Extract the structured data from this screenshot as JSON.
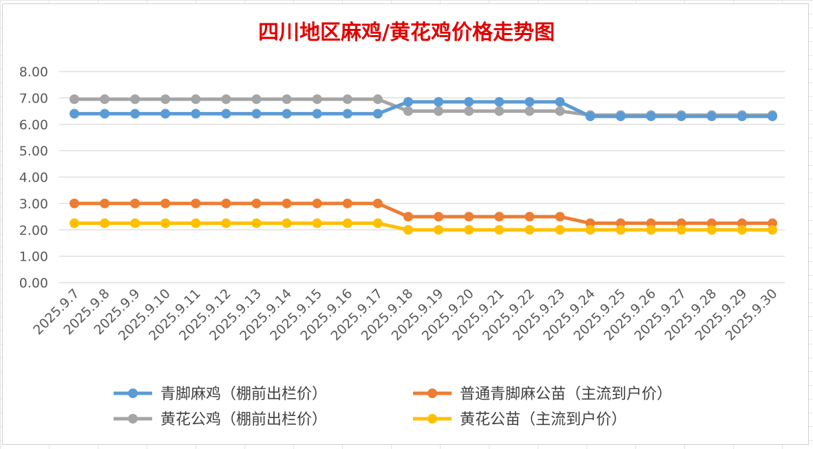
{
  "chart_data": {
    "type": "line",
    "title": "四川地区麻鸡/黄花鸡价格走势图",
    "xlabel": "",
    "ylabel": "",
    "ylim": [
      0,
      8
    ],
    "y_ticks": [
      "0.00",
      "1.00",
      "2.00",
      "3.00",
      "4.00",
      "5.00",
      "6.00",
      "7.00",
      "8.00"
    ],
    "grid": "horizontal",
    "legend_position": "bottom",
    "categories": [
      "2025.9.7",
      "2025.9.8",
      "2025.9.9",
      "2025.9.10",
      "2025.9.11",
      "2025.9.12",
      "2025.9.13",
      "2025.9.14",
      "2025.9.15",
      "2025.9.16",
      "2025.9.17",
      "2025.9.18",
      "2025.9.19",
      "2025.9.20",
      "2025.9.21",
      "2025.9.22",
      "2025.9.23",
      "2025.9.24",
      "2025.9.25",
      "2025.9.26",
      "2025.9.27",
      "2025.9.28",
      "2025.9.29",
      "2025.9.30"
    ],
    "series": [
      {
        "name": "青脚麻鸡（棚前出栏价）",
        "color": "#5B9BD5",
        "values": [
          6.4,
          6.4,
          6.4,
          6.4,
          6.4,
          6.4,
          6.4,
          6.4,
          6.4,
          6.4,
          6.4,
          6.85,
          6.85,
          6.85,
          6.85,
          6.85,
          6.85,
          6.3,
          6.3,
          6.3,
          6.3,
          6.3,
          6.3,
          6.3
        ]
      },
      {
        "name": "普通青脚麻公苗（主流到户价）",
        "color": "#ED7D31",
        "values": [
          3.0,
          3.0,
          3.0,
          3.0,
          3.0,
          3.0,
          3.0,
          3.0,
          3.0,
          3.0,
          3.0,
          2.5,
          2.5,
          2.5,
          2.5,
          2.5,
          2.5,
          2.25,
          2.25,
          2.25,
          2.25,
          2.25,
          2.25,
          2.25
        ]
      },
      {
        "name": "黄花公鸡（棚前出栏价）",
        "color": "#A5A5A5",
        "values": [
          6.95,
          6.95,
          6.95,
          6.95,
          6.95,
          6.95,
          6.95,
          6.95,
          6.95,
          6.95,
          6.95,
          6.5,
          6.5,
          6.5,
          6.5,
          6.5,
          6.5,
          6.35,
          6.35,
          6.35,
          6.35,
          6.35,
          6.35,
          6.35
        ]
      },
      {
        "name": "黄花公苗（主流到户价）",
        "color": "#FFC000",
        "values": [
          2.25,
          2.25,
          2.25,
          2.25,
          2.25,
          2.25,
          2.25,
          2.25,
          2.25,
          2.25,
          2.25,
          2.0,
          2.0,
          2.0,
          2.0,
          2.0,
          2.0,
          2.0,
          2.0,
          2.0,
          2.0,
          2.0,
          2.0,
          2.0
        ]
      }
    ],
    "legend_order": [
      0,
      1,
      2,
      3
    ]
  }
}
